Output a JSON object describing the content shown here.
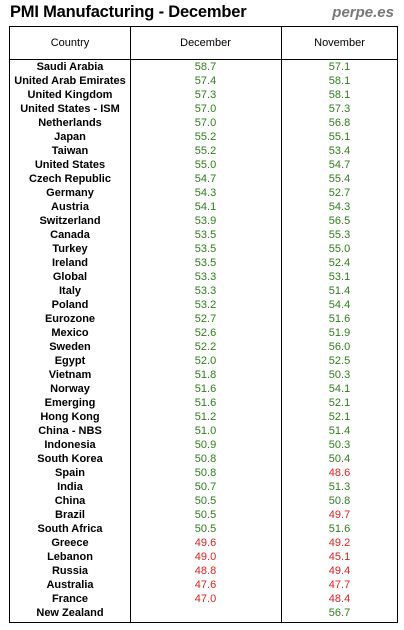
{
  "title": "PMI Manufacturing - December",
  "brand": "perpe.es",
  "columns": {
    "country": "Country",
    "december": "December",
    "november": "November"
  },
  "colors": {
    "above_50": "#2e7d1a",
    "below_50": "#e02020"
  },
  "rows": [
    {
      "country": "Saudi Arabia",
      "december": "58.7",
      "november": "57.1"
    },
    {
      "country": "United Arab Emirates",
      "december": "57.4",
      "november": "58.1"
    },
    {
      "country": "United Kingdom",
      "december": "57.3",
      "november": "58.1"
    },
    {
      "country": "United States - ISM",
      "december": "57.0",
      "november": "57.3"
    },
    {
      "country": "Netherlands",
      "december": "57.0",
      "november": "56.8"
    },
    {
      "country": "Japan",
      "december": "55.2",
      "november": "55.1"
    },
    {
      "country": "Taiwan",
      "december": "55.2",
      "november": "53.4"
    },
    {
      "country": "United States",
      "december": "55.0",
      "november": "54.7"
    },
    {
      "country": "Czech Republic",
      "december": "54.7",
      "november": "55.4"
    },
    {
      "country": "Germany",
      "december": "54.3",
      "november": "52.7"
    },
    {
      "country": "Austria",
      "december": "54.1",
      "november": "54.3"
    },
    {
      "country": "Switzerland",
      "december": "53.9",
      "november": "56.5"
    },
    {
      "country": "Canada",
      "december": "53.5",
      "november": "55.3"
    },
    {
      "country": "Turkey",
      "december": "53.5",
      "november": "55.0"
    },
    {
      "country": "Ireland",
      "december": "53.5",
      "november": "52.4"
    },
    {
      "country": "Global",
      "december": "53.3",
      "november": "53.1"
    },
    {
      "country": "Italy",
      "december": "53.3",
      "november": "51.4"
    },
    {
      "country": "Poland",
      "december": "53.2",
      "november": "54.4"
    },
    {
      "country": "Eurozone",
      "december": "52.7",
      "november": "51.6"
    },
    {
      "country": "Mexico",
      "december": "52.6",
      "november": "51.9"
    },
    {
      "country": "Sweden",
      "december": "52.2",
      "november": "56.0"
    },
    {
      "country": "Egypt",
      "december": "52.0",
      "november": "52.5"
    },
    {
      "country": "Vietnam",
      "december": "51.8",
      "november": "50.3"
    },
    {
      "country": "Norway",
      "december": "51.6",
      "november": "54.1"
    },
    {
      "country": "Emerging",
      "december": "51.6",
      "november": "52.1"
    },
    {
      "country": "Hong Kong",
      "december": "51.2",
      "november": "52.1"
    },
    {
      "country": "China - NBS",
      "december": "51.0",
      "november": "51.4"
    },
    {
      "country": "Indonesia",
      "december": "50.9",
      "november": "50.3"
    },
    {
      "country": "South Korea",
      "december": "50.8",
      "november": "50.4"
    },
    {
      "country": "Spain",
      "december": "50.8",
      "november": "48.6"
    },
    {
      "country": "India",
      "december": "50.7",
      "november": "51.3"
    },
    {
      "country": "China",
      "december": "50.5",
      "november": "50.8"
    },
    {
      "country": "Brazil",
      "december": "50.5",
      "november": "49.7"
    },
    {
      "country": "South Africa",
      "december": "50.5",
      "november": "51.6"
    },
    {
      "country": "Greece",
      "december": "49.6",
      "november": "49.2"
    },
    {
      "country": "Lebanon",
      "december": "49.0",
      "november": "45.1"
    },
    {
      "country": "Russia",
      "december": "48.8",
      "november": "49.4"
    },
    {
      "country": "Australia",
      "december": "47.6",
      "november": "47.7"
    },
    {
      "country": "France",
      "december": "47.0",
      "november": "48.4"
    },
    {
      "country": "New Zealand",
      "december": "",
      "november": "56.7"
    }
  ]
}
